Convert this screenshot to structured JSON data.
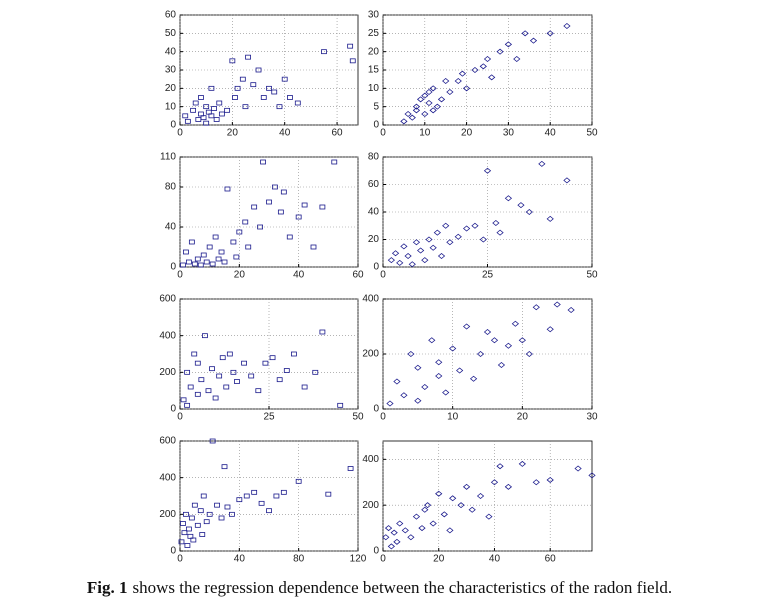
{
  "chart_data": [
    {
      "type": "scatter",
      "marker": "square",
      "color": "#1a1a8c",
      "grid": true,
      "xlim": [
        0,
        68
      ],
      "ylim": [
        0,
        60
      ],
      "xticks": [
        0,
        20,
        40,
        60
      ],
      "yticks": [
        0,
        10,
        20,
        30,
        40,
        50,
        60
      ],
      "x": [
        2,
        3,
        5,
        6,
        7,
        8,
        8,
        9,
        10,
        10,
        11,
        12,
        12,
        13,
        14,
        15,
        16,
        18,
        20,
        21,
        22,
        24,
        25,
        26,
        28,
        30,
        32,
        34,
        36,
        38,
        40,
        42,
        45,
        55,
        65,
        66
      ],
      "y": [
        5,
        2,
        8,
        12,
        3,
        6,
        15,
        4,
        10,
        1,
        7,
        20,
        5,
        9,
        3,
        12,
        6,
        8,
        35,
        15,
        20,
        25,
        10,
        37,
        22,
        30,
        15,
        20,
        18,
        10,
        25,
        15,
        12,
        40,
        43,
        35
      ]
    },
    {
      "type": "scatter",
      "marker": "diamond",
      "color": "#1a1a8c",
      "grid": true,
      "xlim": [
        0,
        50
      ],
      "ylim": [
        0,
        30
      ],
      "xticks": [
        0,
        10,
        20,
        30,
        40,
        50
      ],
      "yticks": [
        0,
        5,
        10,
        15,
        20,
        25,
        30
      ],
      "x": [
        5,
        6,
        7,
        8,
        8,
        9,
        10,
        10,
        11,
        11,
        12,
        12,
        13,
        14,
        15,
        16,
        18,
        19,
        20,
        22,
        24,
        25,
        26,
        28,
        30,
        32,
        34,
        36,
        40,
        44
      ],
      "y": [
        1,
        3,
        2,
        5,
        4,
        7,
        3,
        8,
        6,
        9,
        4,
        10,
        5,
        7,
        12,
        9,
        12,
        14,
        10,
        15,
        16,
        18,
        13,
        20,
        22,
        18,
        25,
        23,
        25,
        27
      ]
    },
    {
      "type": "scatter",
      "marker": "square",
      "color": "#1a1a8c",
      "grid": true,
      "xlim": [
        0,
        60
      ],
      "ylim": [
        0,
        110
      ],
      "xticks": [
        0,
        20,
        40,
        60
      ],
      "yticks": [
        0,
        40,
        80,
        110
      ],
      "x": [
        1,
        2,
        3,
        4,
        5,
        6,
        7,
        8,
        9,
        10,
        11,
        12,
        13,
        14,
        15,
        16,
        18,
        19,
        20,
        22,
        23,
        25,
        27,
        28,
        30,
        32,
        34,
        35,
        37,
        40,
        42,
        45,
        48,
        52
      ],
      "y": [
        2,
        15,
        5,
        25,
        3,
        8,
        2,
        12,
        5,
        20,
        3,
        30,
        8,
        15,
        5,
        78,
        25,
        10,
        35,
        45,
        20,
        60,
        40,
        105,
        65,
        80,
        55,
        75,
        30,
        50,
        62,
        20,
        60,
        105
      ]
    },
    {
      "type": "scatter",
      "marker": "diamond",
      "color": "#1a1a8c",
      "grid": true,
      "xlim": [
        0,
        50
      ],
      "ylim": [
        0,
        80
      ],
      "xticks": [
        0,
        25,
        50
      ],
      "yticks": [
        0,
        20,
        40,
        60,
        80
      ],
      "x": [
        2,
        3,
        4,
        5,
        6,
        7,
        8,
        9,
        10,
        11,
        12,
        13,
        14,
        15,
        16,
        18,
        20,
        22,
        24,
        25,
        27,
        28,
        30,
        33,
        35,
        38,
        40,
        44
      ],
      "y": [
        5,
        10,
        3,
        15,
        8,
        2,
        18,
        12,
        5,
        20,
        14,
        25,
        8,
        30,
        18,
        22,
        28,
        30,
        20,
        70,
        32,
        25,
        50,
        45,
        40,
        75,
        35,
        63
      ]
    },
    {
      "type": "scatter",
      "marker": "square",
      "color": "#1a1a8c",
      "grid": true,
      "xlim": [
        0,
        50
      ],
      "ylim": [
        0,
        600
      ],
      "xticks": [
        0,
        25,
        50
      ],
      "yticks": [
        0,
        200,
        400,
        600
      ],
      "x": [
        1,
        2,
        2,
        3,
        4,
        5,
        5,
        6,
        7,
        8,
        9,
        10,
        11,
        12,
        13,
        14,
        15,
        16,
        18,
        20,
        22,
        24,
        26,
        28,
        30,
        32,
        35,
        38,
        40,
        45
      ],
      "y": [
        50,
        200,
        20,
        120,
        300,
        80,
        250,
        160,
        400,
        100,
        220,
        60,
        180,
        280,
        120,
        300,
        200,
        150,
        250,
        180,
        100,
        250,
        280,
        160,
        210,
        300,
        120,
        200,
        420,
        20
      ]
    },
    {
      "type": "scatter",
      "marker": "diamond",
      "color": "#1a1a8c",
      "grid": true,
      "xlim": [
        0,
        30
      ],
      "ylim": [
        0,
        400
      ],
      "xticks": [
        0,
        10,
        20,
        30
      ],
      "yticks": [
        0,
        200,
        400
      ],
      "x": [
        1,
        2,
        3,
        4,
        5,
        5,
        6,
        7,
        8,
        8,
        9,
        10,
        11,
        12,
        13,
        14,
        15,
        16,
        17,
        18,
        19,
        20,
        21,
        22,
        24,
        25,
        27
      ],
      "y": [
        20,
        100,
        50,
        200,
        30,
        150,
        80,
        250,
        120,
        170,
        60,
        220,
        140,
        300,
        110,
        200,
        280,
        250,
        160,
        230,
        310,
        250,
        200,
        370,
        290,
        380,
        360
      ]
    },
    {
      "type": "scatter",
      "marker": "square",
      "color": "#1a1a8c",
      "grid": true,
      "xlim": [
        0,
        120
      ],
      "ylim": [
        0,
        600
      ],
      "xticks": [
        0,
        40,
        80,
        120
      ],
      "yticks": [
        0,
        200,
        400,
        600
      ],
      "x": [
        1,
        2,
        3,
        4,
        5,
        6,
        7,
        8,
        9,
        10,
        12,
        14,
        15,
        16,
        18,
        20,
        22,
        25,
        28,
        30,
        32,
        35,
        40,
        45,
        50,
        55,
        60,
        65,
        70,
        80,
        100,
        115
      ],
      "y": [
        50,
        150,
        100,
        200,
        30,
        120,
        80,
        180,
        60,
        250,
        140,
        220,
        90,
        300,
        160,
        200,
        600,
        250,
        180,
        460,
        240,
        200,
        280,
        300,
        320,
        260,
        220,
        300,
        320,
        380,
        310,
        450
      ]
    },
    {
      "type": "scatter",
      "marker": "diamond",
      "color": "#1a1a8c",
      "grid": true,
      "xlim": [
        0,
        75
      ],
      "ylim": [
        0,
        480
      ],
      "xticks": [
        0,
        20,
        40,
        60
      ],
      "yticks": [
        0,
        200,
        400
      ],
      "x": [
        1,
        2,
        3,
        4,
        5,
        6,
        8,
        10,
        12,
        14,
        15,
        16,
        18,
        20,
        22,
        24,
        25,
        28,
        30,
        32,
        35,
        38,
        40,
        42,
        45,
        50,
        55,
        60,
        70,
        75
      ],
      "y": [
        60,
        100,
        20,
        80,
        40,
        120,
        90,
        60,
        150,
        100,
        180,
        200,
        120,
        250,
        160,
        90,
        230,
        200,
        280,
        180,
        240,
        150,
        300,
        370,
        280,
        380,
        300,
        310,
        360,
        330
      ]
    }
  ],
  "caption": {
    "label": "Fig. 1",
    "text": "shows the regression dependence between the characteristics of the radon field."
  }
}
